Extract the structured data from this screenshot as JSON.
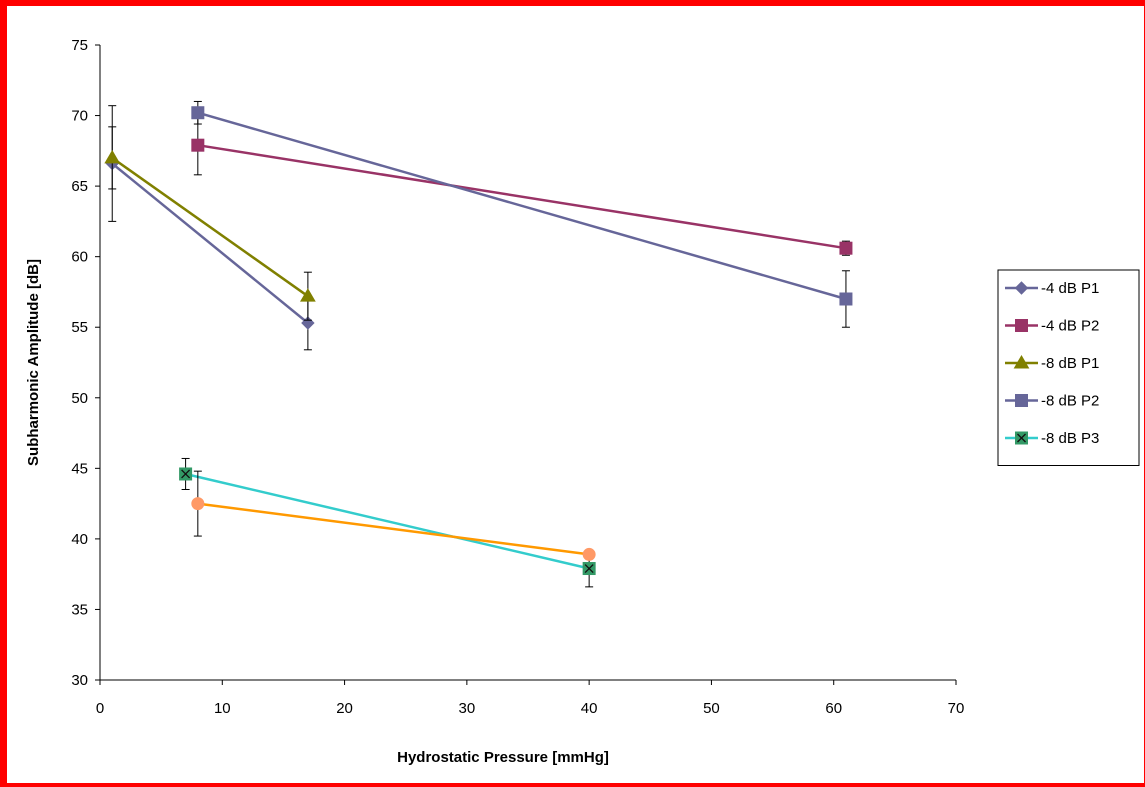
{
  "chart_data": {
    "type": "line",
    "xlabel": "Hydrostatic Pressure [mmHg]",
    "ylabel": "Subharmonic Amplitude [dB]",
    "xlim": [
      0,
      70
    ],
    "ylim": [
      30,
      75
    ],
    "xticks": [
      0,
      10,
      20,
      30,
      40,
      50,
      60,
      70
    ],
    "yticks": [
      30,
      35,
      40,
      45,
      50,
      55,
      60,
      65,
      70,
      75
    ],
    "grid": false,
    "legend_position": "right",
    "series": [
      {
        "name": "-4 dB P1",
        "color": "#666699",
        "marker": "diamond",
        "points": [
          {
            "x": 1,
            "y": 66.6,
            "err": 4.1
          },
          {
            "x": 17,
            "y": 55.3,
            "err": 1.9
          }
        ]
      },
      {
        "name": "-4 dB P2",
        "color": "#993366",
        "marker": "square",
        "points": [
          {
            "x": 8,
            "y": 67.9,
            "err": 2.1
          },
          {
            "x": 61,
            "y": 60.6,
            "err": 0.5
          }
        ]
      },
      {
        "name": "-8 dB P1",
        "color": "#808000",
        "marker": "triangle",
        "points": [
          {
            "x": 1,
            "y": 67.0,
            "err": 2.2
          },
          {
            "x": 17,
            "y": 57.2,
            "err": 1.7
          }
        ]
      },
      {
        "name": "-8 dB P2",
        "color": "#666699",
        "marker": "square",
        "points": [
          {
            "x": 8,
            "y": 70.2,
            "err": 0.8
          },
          {
            "x": 61,
            "y": 57.0,
            "err": 2.0
          }
        ]
      },
      {
        "name": "-8 dB P3",
        "color": "#33cccc",
        "marker": "x-square",
        "markerFill": "#339966",
        "points": [
          {
            "x": 7,
            "y": 44.6,
            "err": 1.1
          },
          {
            "x": 40,
            "y": 37.9,
            "err": 1.3
          }
        ]
      },
      {
        "name": "",
        "color": "#ff9900",
        "marker": "circle",
        "markerFill": "#ff9966",
        "legend": false,
        "points": [
          {
            "x": 8,
            "y": 42.5,
            "err": 2.3
          },
          {
            "x": 40,
            "y": 38.9,
            "err": 0.3
          }
        ]
      }
    ]
  }
}
